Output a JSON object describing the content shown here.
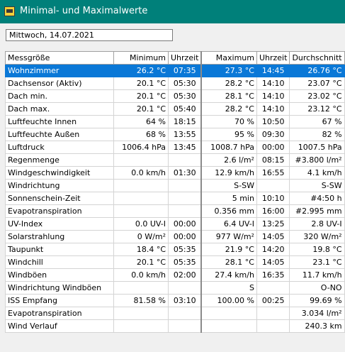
{
  "window": {
    "title": "Minimal- und Maximalwerte"
  },
  "date_field": {
    "value": "Mittwoch, 14.07.2021"
  },
  "table": {
    "headers": [
      "Messgröße",
      "Minimum",
      "Uhrzeit",
      "Maximum",
      "Uhrzeit",
      "Durchschnitt"
    ],
    "rows": [
      [
        "Wohnzimmer",
        "26.2 °C",
        "07:35",
        "27.3 °C",
        "14:45",
        "26.76 °C"
      ],
      [
        "Dachsensor (Aktiv)",
        "20.1 °C",
        "05:30",
        "28.2 °C",
        "14:10",
        "23.07 °C"
      ],
      [
        "Dach min.",
        "20.1 °C",
        "05:30",
        "28.1 °C",
        "14:10",
        "23.02 °C"
      ],
      [
        "Dach max.",
        "20.1 °C",
        "05:40",
        "28.2 °C",
        "14:10",
        "23.12 °C"
      ],
      [
        "Luftfeuchte Innen",
        "64 %",
        "18:15",
        "70 %",
        "10:50",
        "67 %"
      ],
      [
        "Luftfeuchte Außen",
        "68 %",
        "13:55",
        "95 %",
        "09:30",
        "82 %"
      ],
      [
        "Luftdruck",
        "1006.4 hPa",
        "13:45",
        "1008.7 hPa",
        "00:00",
        "1007.5 hPa"
      ],
      [
        "Regenmenge",
        "",
        "",
        "2.6 l/m²",
        "08:15",
        "#3.800 l/m²"
      ],
      [
        "Windgeschwindigkeit",
        "0.0 km/h",
        "01:30",
        "12.9 km/h",
        "16:55",
        "4.1 km/h"
      ],
      [
        "Windrichtung",
        "",
        "",
        "S-SW",
        "",
        "S-SW"
      ],
      [
        "Sonnenschein-Zeit",
        "",
        "",
        "5 min",
        "10:10",
        "#4:50 h"
      ],
      [
        "Evapotranspiration",
        "",
        "",
        "0.356 mm",
        "16:00",
        "#2.995 mm"
      ],
      [
        "UV-Index",
        "0.0 UV-I",
        "00:00",
        "6.4 UV-I",
        "13:25",
        "2.8 UV-I"
      ],
      [
        "Solarstrahlung",
        "0 W/m²",
        "00:00",
        "977 W/m²",
        "14:05",
        "320 W/m²"
      ],
      [
        "Taupunkt",
        "18.4 °C",
        "05:35",
        "21.9 °C",
        "14:20",
        "19.8 °C"
      ],
      [
        "Windchill",
        "20.1 °C",
        "05:35",
        "28.1 °C",
        "14:05",
        "23.1 °C"
      ],
      [
        "Windböen",
        "0.0 km/h",
        "02:00",
        "27.4 km/h",
        "16:35",
        "11.7 km/h"
      ],
      [
        "Windrichtung Windböen",
        "",
        "",
        "S",
        "",
        "O-NO"
      ],
      [
        "ISS Empfang",
        "81.58 %",
        "03:10",
        "100.00 %",
        "00:25",
        "99.69 %"
      ],
      [
        "Evapotranspiration",
        "",
        "",
        "",
        "",
        "3.034 l/m²"
      ],
      [
        "Wind Verlauf",
        "",
        "",
        "",
        "",
        "240.3 km"
      ]
    ],
    "selected_row": 0
  },
  "colors": {
    "titlebar": "#00807a",
    "selection": "#0a78d7",
    "window_bg": "#f0f0f0"
  },
  "icons": {
    "app": "weather-app-icon"
  }
}
